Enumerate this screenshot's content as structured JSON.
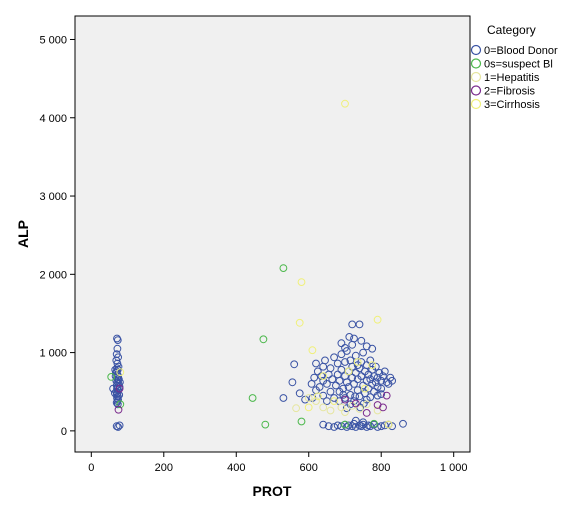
{
  "chart_data": {
    "type": "scatter",
    "xlabel": "PROT",
    "ylabel": "ALP",
    "xlim": [
      -45,
      1045
    ],
    "ylim": [
      -270,
      5300
    ],
    "x_ticks": [
      0,
      200,
      400,
      600,
      800,
      1000
    ],
    "x_tick_labels": [
      "0",
      "200",
      "400",
      "600",
      "800",
      "1 000"
    ],
    "y_ticks": [
      0,
      1000,
      2000,
      3000,
      4000,
      5000
    ],
    "y_tick_labels": [
      "0",
      "1 000",
      "2 000",
      "3 000",
      "4 000",
      "5 000"
    ],
    "grid": false,
    "background": "#f0f0f0",
    "legend": {
      "title": "Category",
      "placement": "right",
      "entries": [
        {
          "label": "0=Blood Donor",
          "color": "#3a53a4"
        },
        {
          "label": "0s=suspect Bl",
          "color": "#4cb84c"
        },
        {
          "label": "1=Hepatitis",
          "color": "#e6e6a0"
        },
        {
          "label": "2=Fibrosis",
          "color": "#7a2a8c"
        },
        {
          "label": "3=Cirrhosis",
          "color": "#f0f07a"
        }
      ]
    },
    "series": [
      {
        "name": "0=Blood Donor",
        "color": "#3a53a4",
        "points": [
          [
            71,
            1180
          ],
          [
            73,
            1160
          ],
          [
            72,
            1050
          ],
          [
            70,
            980
          ],
          [
            74,
            940
          ],
          [
            69,
            900
          ],
          [
            72,
            860
          ],
          [
            75,
            820
          ],
          [
            71,
            800
          ],
          [
            73,
            780
          ],
          [
            70,
            760
          ],
          [
            68,
            740
          ],
          [
            72,
            720
          ],
          [
            74,
            700
          ],
          [
            71,
            680
          ],
          [
            73,
            660
          ],
          [
            69,
            640
          ],
          [
            72,
            620
          ],
          [
            75,
            600
          ],
          [
            70,
            580
          ],
          [
            73,
            560
          ],
          [
            71,
            540
          ],
          [
            74,
            520
          ],
          [
            69,
            500
          ],
          [
            72,
            480
          ],
          [
            70,
            460
          ],
          [
            73,
            440
          ],
          [
            71,
            420
          ],
          [
            74,
            400
          ],
          [
            72,
            380
          ],
          [
            70,
            360
          ],
          [
            73,
            340
          ],
          [
            60,
            540
          ],
          [
            78,
            560
          ],
          [
            65,
            480
          ],
          [
            76,
            660
          ],
          [
            67,
            700
          ],
          [
            79,
            620
          ],
          [
            66,
            780
          ],
          [
            77,
            460
          ],
          [
            70,
            60
          ],
          [
            74,
            50
          ],
          [
            78,
            70
          ],
          [
            530,
            420
          ],
          [
            555,
            620
          ],
          [
            560,
            850
          ],
          [
            575,
            480
          ],
          [
            590,
            400
          ],
          [
            610,
            420
          ],
          [
            615,
            680
          ],
          [
            620,
            860
          ],
          [
            625,
            760
          ],
          [
            630,
            560
          ],
          [
            635,
            700
          ],
          [
            640,
            640
          ],
          [
            640,
            820
          ],
          [
            645,
            900
          ],
          [
            650,
            380
          ],
          [
            650,
            600
          ],
          [
            655,
            720
          ],
          [
            660,
            500
          ],
          [
            660,
            800
          ],
          [
            665,
            660
          ],
          [
            670,
            940
          ],
          [
            670,
            420
          ],
          [
            675,
            580
          ],
          [
            680,
            720
          ],
          [
            680,
            860
          ],
          [
            685,
            500
          ],
          [
            685,
            640
          ],
          [
            690,
            780
          ],
          [
            690,
            980
          ],
          [
            695,
            540
          ],
          [
            700,
            700
          ],
          [
            700,
            880
          ],
          [
            700,
            420
          ],
          [
            705,
            620
          ],
          [
            705,
            1020
          ],
          [
            710,
            760
          ],
          [
            710,
            560
          ],
          [
            715,
            900
          ],
          [
            715,
            460
          ],
          [
            720,
            680
          ],
          [
            720,
            820
          ],
          [
            720,
            1100
          ],
          [
            725,
            600
          ],
          [
            725,
            380
          ],
          [
            730,
            740
          ],
          [
            730,
            960
          ],
          [
            735,
            520
          ],
          [
            735,
            660
          ],
          [
            740,
            800
          ],
          [
            740,
            440
          ],
          [
            745,
            700
          ],
          [
            745,
            880
          ],
          [
            750,
            580
          ],
          [
            750,
            1000
          ],
          [
            755,
            760
          ],
          [
            755,
            480
          ],
          [
            760,
            640
          ],
          [
            760,
            840
          ],
          [
            765,
            720
          ],
          [
            765,
            540
          ],
          [
            770,
            900
          ],
          [
            770,
            660
          ],
          [
            775,
            600
          ],
          [
            775,
            780
          ],
          [
            780,
            500
          ],
          [
            780,
            700
          ],
          [
            785,
            820
          ],
          [
            785,
            620
          ],
          [
            790,
            680
          ],
          [
            790,
            560
          ],
          [
            795,
            740
          ],
          [
            800,
            640
          ],
          [
            800,
            540
          ],
          [
            805,
            700
          ],
          [
            810,
            760
          ],
          [
            815,
            620
          ],
          [
            820,
            600
          ],
          [
            825,
            680
          ],
          [
            830,
            640
          ],
          [
            712,
            1200
          ],
          [
            725,
            1180
          ],
          [
            745,
            1150
          ],
          [
            760,
            1080
          ],
          [
            775,
            1050
          ],
          [
            720,
            1360
          ],
          [
            740,
            1360
          ],
          [
            690,
            1120
          ],
          [
            700,
            1060
          ],
          [
            735,
            840
          ],
          [
            695,
            460
          ],
          [
            715,
            340
          ],
          [
            742,
            300
          ],
          [
            760,
            400
          ],
          [
            728,
            440
          ],
          [
            705,
            290
          ],
          [
            684,
            380
          ],
          [
            752,
            350
          ],
          [
            770,
            430
          ],
          [
            790,
            450
          ],
          [
            800,
            470
          ],
          [
            640,
            450
          ],
          [
            620,
            520
          ],
          [
            608,
            600
          ],
          [
            640,
            80
          ],
          [
            655,
            60
          ],
          [
            670,
            50
          ],
          [
            680,
            70
          ],
          [
            690,
            60
          ],
          [
            700,
            80
          ],
          [
            705,
            50
          ],
          [
            710,
            70
          ],
          [
            720,
            60
          ],
          [
            725,
            90
          ],
          [
            730,
            50
          ],
          [
            740,
            70
          ],
          [
            745,
            60
          ],
          [
            750,
            80
          ],
          [
            760,
            50
          ],
          [
            765,
            70
          ],
          [
            770,
            60
          ],
          [
            780,
            80
          ],
          [
            790,
            50
          ],
          [
            800,
            60
          ],
          [
            810,
            70
          ],
          [
            820,
            80
          ],
          [
            830,
            60
          ],
          [
            860,
            90
          ],
          [
            730,
            130
          ],
          [
            750,
            110
          ]
        ]
      },
      {
        "name": "0s=suspect Bl",
        "color": "#4cb84c",
        "points": [
          [
            55,
            690
          ],
          [
            80,
            340
          ],
          [
            445,
            420
          ],
          [
            475,
            1170
          ],
          [
            480,
            80
          ],
          [
            530,
            2080
          ],
          [
            580,
            120
          ],
          [
            700,
            80
          ],
          [
            780,
            90
          ]
        ]
      },
      {
        "name": "1=Hepatitis",
        "color": "#e6e6a0",
        "points": [
          [
            565,
            290
          ],
          [
            600,
            420
          ],
          [
            620,
            380
          ],
          [
            640,
            300
          ],
          [
            660,
            260
          ],
          [
            690,
            300
          ],
          [
            700,
            240
          ],
          [
            720,
            320
          ],
          [
            740,
            280
          ],
          [
            760,
            340
          ],
          [
            790,
            260
          ]
        ]
      },
      {
        "name": "2=Fibrosis",
        "color": "#7a2a8c",
        "points": [
          [
            75,
            270
          ],
          [
            78,
            540
          ],
          [
            700,
            400
          ],
          [
            730,
            350
          ],
          [
            760,
            230
          ],
          [
            790,
            330
          ],
          [
            805,
            300
          ],
          [
            815,
            450
          ]
        ]
      },
      {
        "name": "3=Cirrhosis",
        "color": "#f0f07a",
        "points": [
          [
            80,
            750
          ],
          [
            580,
            1900
          ],
          [
            575,
            1380
          ],
          [
            610,
            1030
          ],
          [
            640,
            700
          ],
          [
            700,
            4180
          ],
          [
            790,
            1420
          ],
          [
            710,
            760
          ],
          [
            735,
            880
          ],
          [
            755,
            540
          ],
          [
            775,
            840
          ],
          [
            600,
            300
          ],
          [
            625,
            440
          ],
          [
            670,
            380
          ],
          [
            820,
            80
          ]
        ]
      }
    ]
  }
}
